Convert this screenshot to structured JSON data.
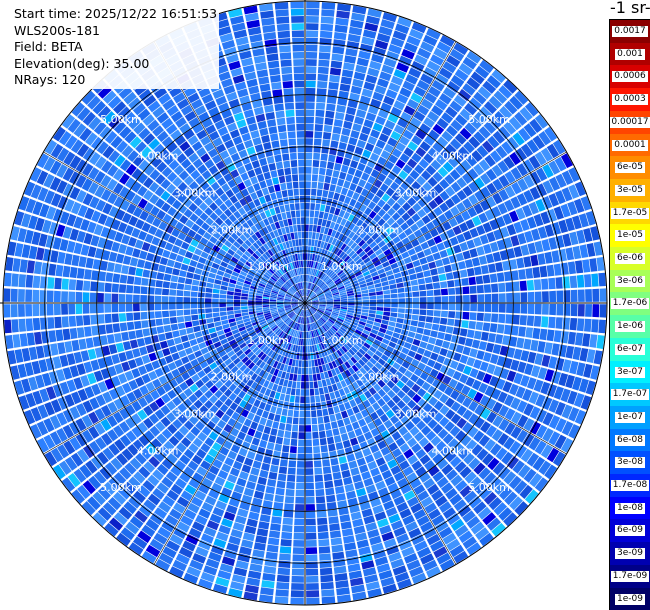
{
  "info": {
    "start_time": "Start time: 2025/12/22 16:51:53",
    "instrument": "WLS200s-181",
    "field": "Field: BETA",
    "elevation": "Elevation(deg): 35.00",
    "nrays": "NRays: 120"
  },
  "colorbar": {
    "unit_text": "-1 sr-",
    "labels": [
      "0.0017",
      "0.001",
      "0.0006",
      "0.0003",
      "0.00017",
      "0.0001",
      "6e-05",
      "3e-05",
      "1.7e-05",
      "1e-05",
      "6e-06",
      "3e-06",
      "1.7e-06",
      "1e-06",
      "6e-07",
      "3e-07",
      "1.7e-07",
      "1e-07",
      "6e-08",
      "3e-08",
      "1.7e-08",
      "1e-08",
      "6e-09",
      "3e-09",
      "1.7e-09",
      "1e-09"
    ],
    "colors": [
      "#8b0000",
      "#b00000",
      "#d80000",
      "#ff1500",
      "#ff4500",
      "#ff6a00",
      "#ff8c00",
      "#ffb000",
      "#ffd800",
      "#ffff00",
      "#d8ff28",
      "#a8ff58",
      "#80ff80",
      "#58ffa8",
      "#28ffd8",
      "#00f0ff",
      "#00c8ff",
      "#00a0ff",
      "#0078ff",
      "#0050ff",
      "#0028ff",
      "#0000ff",
      "#0000d8",
      "#0000b0",
      "#000088",
      "#000066"
    ]
  },
  "chart_data": {
    "type": "heatmap",
    "projection": "polar-ppi",
    "field": "BETA",
    "elevation_deg": 35.0,
    "n_rays": 120,
    "range_rings_km": [
      1,
      2,
      3,
      4,
      5
    ],
    "ring_labels": [
      "1.00km",
      "2.00km",
      "3.00km",
      "4.00km",
      "5.00km"
    ],
    "max_range_km": 5.8,
    "value_range": [
      1e-09,
      0.0017
    ],
    "dominant_value": "≈1e-08 to 1e-07 (blue)"
  }
}
